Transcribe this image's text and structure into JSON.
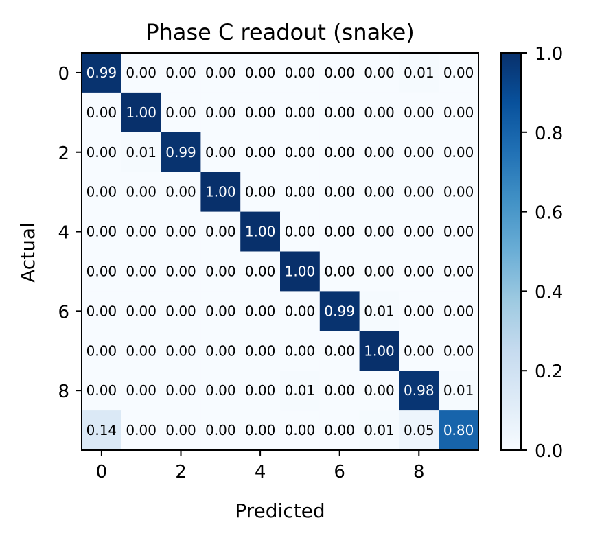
{
  "chart_data": {
    "type": "heatmap",
    "title": "Phase C readout (snake)",
    "xlabel": "Predicted",
    "ylabel": "Actual",
    "x_ticks": [
      "0",
      "2",
      "4",
      "6",
      "8"
    ],
    "y_ticks": [
      "0",
      "2",
      "4",
      "6",
      "8"
    ],
    "colorbar": {
      "ticks": [
        "0.0",
        "0.2",
        "0.4",
        "0.6",
        "0.8",
        "1.0"
      ],
      "range": [
        0,
        1
      ],
      "colormap": "Blues"
    },
    "values": [
      [
        0.99,
        0.0,
        0.0,
        0.0,
        0.0,
        0.0,
        0.0,
        0.0,
        0.01,
        0.0
      ],
      [
        0.0,
        1.0,
        0.0,
        0.0,
        0.0,
        0.0,
        0.0,
        0.0,
        0.0,
        0.0
      ],
      [
        0.0,
        0.01,
        0.99,
        0.0,
        0.0,
        0.0,
        0.0,
        0.0,
        0.0,
        0.0
      ],
      [
        0.0,
        0.0,
        0.0,
        1.0,
        0.0,
        0.0,
        0.0,
        0.0,
        0.0,
        0.0
      ],
      [
        0.0,
        0.0,
        0.0,
        0.0,
        1.0,
        0.0,
        0.0,
        0.0,
        0.0,
        0.0
      ],
      [
        0.0,
        0.0,
        0.0,
        0.0,
        0.0,
        1.0,
        0.0,
        0.0,
        0.0,
        0.0
      ],
      [
        0.0,
        0.0,
        0.0,
        0.0,
        0.0,
        0.0,
        0.99,
        0.01,
        0.0,
        0.0
      ],
      [
        0.0,
        0.0,
        0.0,
        0.0,
        0.0,
        0.0,
        0.0,
        1.0,
        0.0,
        0.0
      ],
      [
        0.0,
        0.0,
        0.0,
        0.0,
        0.0,
        0.01,
        0.0,
        0.0,
        0.98,
        0.01
      ],
      [
        0.14,
        0.0,
        0.0,
        0.0,
        0.0,
        0.0,
        0.0,
        0.01,
        0.05,
        0.8
      ]
    ],
    "cell_labels": [
      [
        "0.99",
        "0.00",
        "0.00",
        "0.00",
        "0.00",
        "0.00",
        "0.00",
        "0.00",
        "0.01",
        "0.00"
      ],
      [
        "0.00",
        "1.00",
        "0.00",
        "0.00",
        "0.00",
        "0.00",
        "0.00",
        "0.00",
        "0.00",
        "0.00"
      ],
      [
        "0.00",
        "0.01",
        "0.99",
        "0.00",
        "0.00",
        "0.00",
        "0.00",
        "0.00",
        "0.00",
        "0.00"
      ],
      [
        "0.00",
        "0.00",
        "0.00",
        "1.00",
        "0.00",
        "0.00",
        "0.00",
        "0.00",
        "0.00",
        "0.00"
      ],
      [
        "0.00",
        "0.00",
        "0.00",
        "0.00",
        "1.00",
        "0.00",
        "0.00",
        "0.00",
        "0.00",
        "0.00"
      ],
      [
        "0.00",
        "0.00",
        "0.00",
        "0.00",
        "0.00",
        "1.00",
        "0.00",
        "0.00",
        "0.00",
        "0.00"
      ],
      [
        "0.00",
        "0.00",
        "0.00",
        "0.00",
        "0.00",
        "0.00",
        "0.99",
        "0.01",
        "0.00",
        "0.00"
      ],
      [
        "0.00",
        "0.00",
        "0.00",
        "0.00",
        "0.00",
        "0.00",
        "0.00",
        "1.00",
        "0.00",
        "0.00"
      ],
      [
        "0.00",
        "0.00",
        "0.00",
        "0.00",
        "0.00",
        "0.01",
        "0.00",
        "0.00",
        "0.98",
        "0.01"
      ],
      [
        "0.14",
        "0.00",
        "0.00",
        "0.00",
        "0.00",
        "0.00",
        "0.00",
        "0.01",
        "0.05",
        "0.80"
      ]
    ]
  }
}
